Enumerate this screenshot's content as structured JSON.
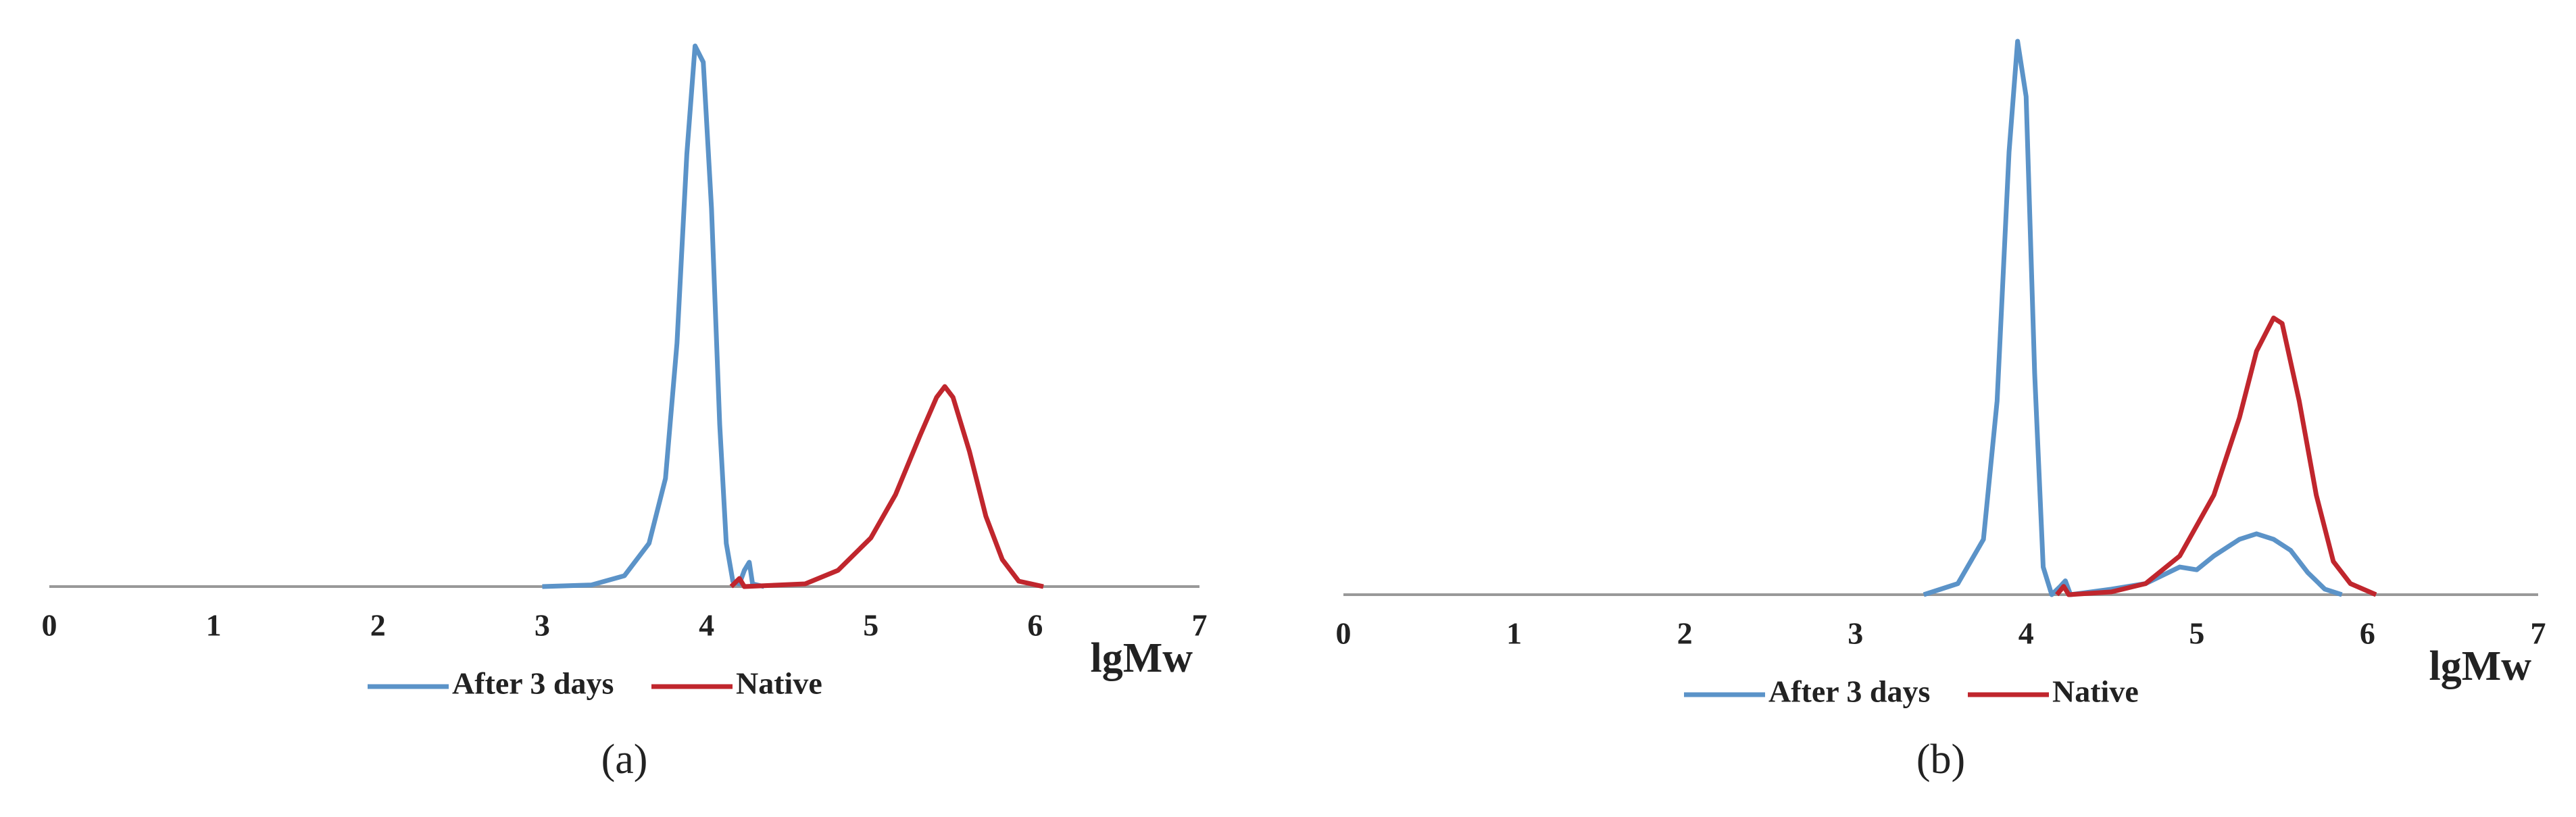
{
  "chart_data": [
    {
      "type": "line",
      "panel_label": "(a)",
      "x_label": "lgMw",
      "xlim": [
        0,
        7
      ],
      "xticks": [
        0,
        1,
        2,
        3,
        4,
        5,
        6,
        7
      ],
      "ylim": [
        0,
        100
      ],
      "series": [
        {
          "name": "After 3 days",
          "color": "#5b93c8",
          "x": [
            3.0,
            3.3,
            3.5,
            3.65,
            3.75,
            3.82,
            3.88,
            3.93,
            3.98,
            4.03,
            4.08,
            4.12,
            4.16,
            4.2,
            4.23,
            4.26,
            4.28,
            4.35
          ],
          "values": [
            0,
            0.3,
            2,
            8,
            20,
            45,
            80,
            100,
            97,
            70,
            30,
            8,
            1,
            0.5,
            3,
            4.5,
            0.5,
            0
          ]
        },
        {
          "name": "Native",
          "color": "#c0262d",
          "x": [
            4.15,
            4.2,
            4.23,
            4.6,
            4.8,
            5.0,
            5.15,
            5.3,
            5.4,
            5.45,
            5.5,
            5.6,
            5.7,
            5.8,
            5.9,
            6.05
          ],
          "values": [
            0,
            1.5,
            0,
            0.5,
            3,
            9,
            17,
            28,
            35,
            37,
            35,
            25,
            13,
            5,
            1,
            0
          ]
        }
      ]
    },
    {
      "type": "line",
      "panel_label": "(b)",
      "x_label": "lgMw",
      "xlim": [
        0,
        7
      ],
      "xticks": [
        0,
        1,
        2,
        3,
        4,
        5,
        6,
        7
      ],
      "ylim": [
        0,
        100
      ],
      "series": [
        {
          "name": "After 3 days",
          "color": "#5b93c8",
          "x": [
            3.4,
            3.6,
            3.75,
            3.83,
            3.9,
            3.95,
            4.0,
            4.05,
            4.1,
            4.15,
            4.2,
            4.23,
            4.26,
            4.5,
            4.7,
            4.9,
            5.0,
            5.1,
            5.25,
            5.35,
            5.45,
            5.55,
            5.65,
            5.75,
            5.85
          ],
          "values": [
            0,
            2,
            10,
            35,
            80,
            100,
            90,
            40,
            5,
            0,
            1.5,
            2.5,
            0,
            1,
            2,
            5,
            4.5,
            7,
            10,
            11,
            10,
            8,
            4,
            1,
            0
          ]
        },
        {
          "name": "Native",
          "color": "#c0262d",
          "x": [
            4.18,
            4.22,
            4.25,
            4.5,
            4.7,
            4.9,
            5.1,
            5.25,
            5.35,
            5.45,
            5.5,
            5.6,
            5.7,
            5.8,
            5.9,
            6.05
          ],
          "values": [
            0,
            1.5,
            0,
            0.5,
            2,
            7,
            18,
            32,
            44,
            50,
            49,
            35,
            18,
            6,
            2,
            0
          ]
        }
      ]
    }
  ]
}
